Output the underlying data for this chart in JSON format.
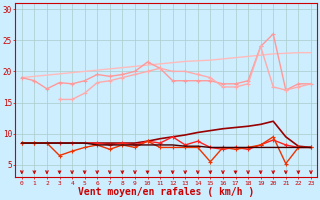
{
  "x": [
    0,
    1,
    2,
    3,
    4,
    5,
    6,
    7,
    8,
    9,
    10,
    11,
    12,
    13,
    14,
    15,
    16,
    17,
    18,
    19,
    20,
    21,
    22,
    23
  ],
  "background_color": "#cceeff",
  "grid_color": "#aacccc",
  "xlabel": "Vent moyen/en rafales ( km/h )",
  "xlabel_color": "#cc0000",
  "xlabel_fontsize": 7,
  "tick_color": "#cc0000",
  "ylim": [
    3,
    31
  ],
  "yticks": [
    5,
    10,
    15,
    20,
    25,
    30
  ],
  "lines": [
    {
      "y": [
        19.0,
        19.2,
        19.4,
        19.6,
        19.8,
        20.0,
        20.2,
        20.4,
        20.6,
        20.8,
        21.0,
        21.2,
        21.4,
        21.6,
        21.7,
        21.8,
        22.0,
        22.2,
        22.4,
        22.6,
        22.8,
        22.9,
        23.0,
        23.0
      ],
      "color": "#ffbbbb",
      "linewidth": 1.0,
      "marker": null
    },
    {
      "y": [
        19.0,
        18.5,
        17.2,
        18.2,
        18.0,
        18.5,
        19.5,
        19.2,
        19.5,
        20.0,
        21.5,
        20.5,
        18.5,
        18.5,
        18.5,
        18.5,
        18.0,
        18.0,
        18.5,
        24.0,
        26.0,
        17.0,
        18.0,
        18.0
      ],
      "color": "#ff9999",
      "linewidth": 1.0,
      "marker": "+",
      "markersize": 3.5
    },
    {
      "y": [
        null,
        null,
        null,
        15.5,
        15.5,
        16.5,
        18.2,
        18.5,
        19.0,
        19.5,
        20.0,
        20.5,
        20.0,
        20.0,
        19.5,
        19.0,
        17.5,
        17.5,
        18.0,
        24.0,
        17.5,
        17.0,
        17.5,
        18.0
      ],
      "color": "#ffaaaa",
      "linewidth": 1.0,
      "marker": "+",
      "markersize": 3.5
    },
    {
      "y": [
        8.5,
        8.5,
        8.5,
        8.5,
        8.5,
        8.5,
        8.5,
        8.5,
        8.5,
        8.5,
        8.8,
        9.2,
        9.5,
        9.8,
        10.2,
        10.5,
        10.8,
        11.0,
        11.2,
        11.5,
        12.0,
        9.5,
        8.0,
        7.8
      ],
      "color": "#990000",
      "linewidth": 1.2,
      "marker": null
    },
    {
      "y": [
        8.5,
        8.5,
        8.5,
        8.5,
        8.5,
        8.5,
        8.5,
        8.2,
        8.5,
        8.2,
        8.8,
        8.5,
        9.5,
        8.2,
        8.8,
        7.8,
        7.5,
        7.8,
        7.5,
        8.2,
        9.0,
        8.2,
        7.8,
        7.8
      ],
      "color": "#ff2222",
      "linewidth": 1.0,
      "marker": "+",
      "markersize": 3.5
    },
    {
      "y": [
        8.5,
        8.5,
        8.5,
        6.5,
        7.2,
        7.8,
        8.2,
        7.5,
        8.2,
        7.8,
        8.8,
        7.8,
        7.8,
        7.8,
        7.8,
        5.5,
        7.8,
        7.5,
        7.8,
        8.2,
        9.5,
        5.2,
        7.8,
        7.8
      ],
      "color": "#ee3300",
      "linewidth": 1.0,
      "marker": "+",
      "markersize": 3.5
    },
    {
      "y": [
        8.5,
        8.5,
        8.5,
        8.5,
        8.5,
        8.5,
        8.2,
        8.2,
        8.2,
        8.2,
        8.2,
        8.2,
        8.2,
        8.0,
        8.0,
        7.8,
        7.8,
        7.8,
        7.8,
        7.8,
        7.8,
        7.8,
        7.8,
        7.8
      ],
      "color": "#440000",
      "linewidth": 1.0,
      "marker": null
    }
  ],
  "arrow_color": "#cc0000"
}
